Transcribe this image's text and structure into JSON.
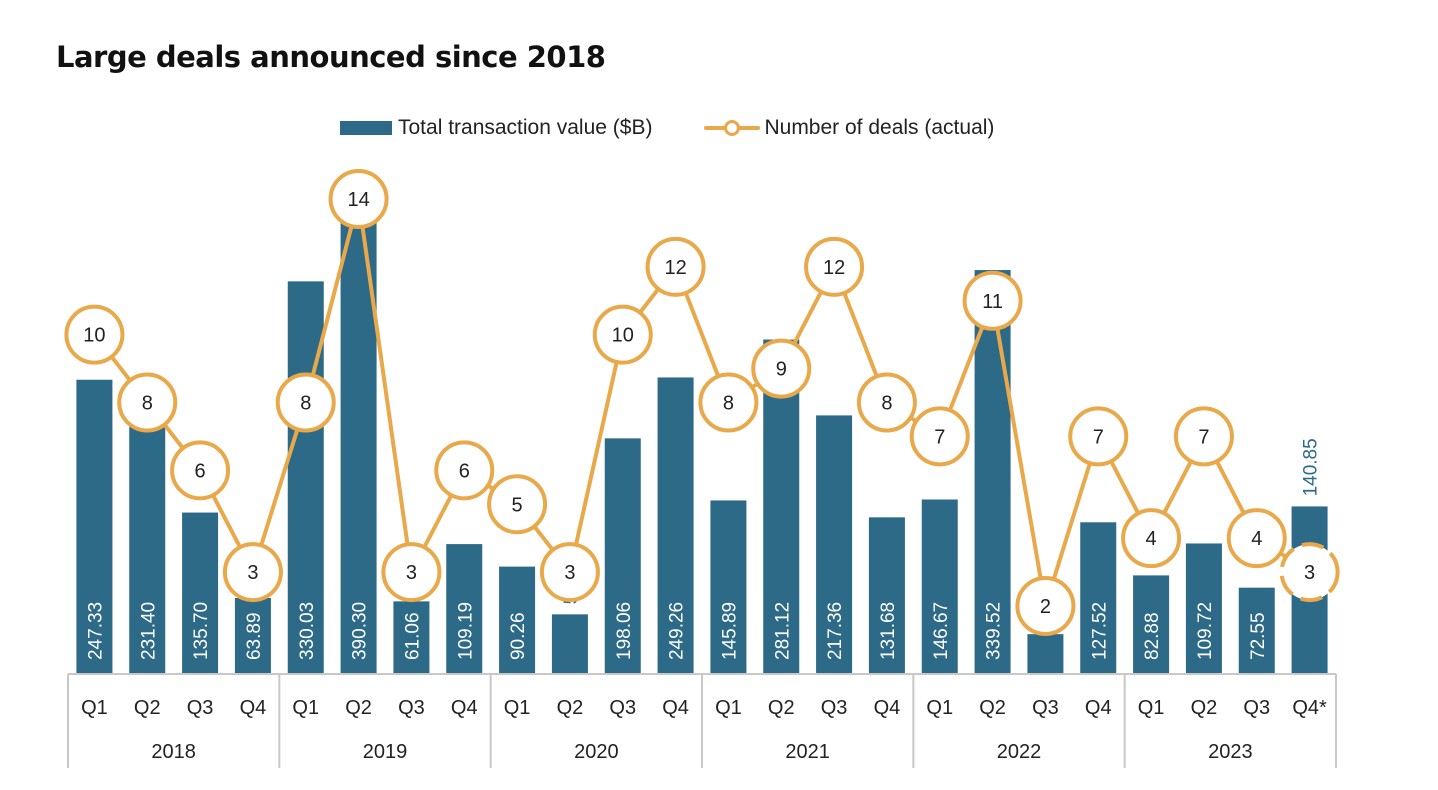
{
  "chart_data": {
    "type": "bar",
    "title": "Large deals announced since 2018",
    "xlabel": "",
    "ylabel": "",
    "legend": {
      "position": "top-center",
      "entries": [
        {
          "name": "Total transaction value ($B)",
          "kind": "bar",
          "color": "#2c6a87"
        },
        {
          "name": "Number of deals (actual)",
          "kind": "line-marker",
          "color": "#e9a84a"
        }
      ]
    },
    "years": [
      "2018",
      "2019",
      "2020",
      "2021",
      "2022",
      "2023"
    ],
    "categories": [
      "Q1",
      "Q2",
      "Q3",
      "Q4",
      "Q1",
      "Q2",
      "Q3",
      "Q4",
      "Q1",
      "Q2",
      "Q3",
      "Q4",
      "Q1",
      "Q2",
      "Q3",
      "Q4",
      "Q1",
      "Q2",
      "Q3",
      "Q4",
      "Q1",
      "Q2",
      "Q3",
      "Q4*"
    ],
    "series": [
      {
        "name": "Total transaction value ($B)",
        "type": "bar",
        "color": "#2c6a87",
        "values": [
          247.33,
          231.4,
          135.7,
          63.89,
          330.03,
          390.3,
          61.06,
          109.19,
          90.26,
          50.15,
          198.06,
          249.26,
          145.89,
          281.12,
          217.36,
          131.68,
          146.67,
          339.52,
          33.5,
          127.52,
          82.88,
          109.72,
          72.55,
          140.85
        ],
        "labels": [
          "247.33",
          "231.40",
          "135.70",
          "63.89",
          "330.03",
          "390.30",
          "61.06",
          "109.19",
          "90.26",
          "50.15",
          "198.06",
          "249.26",
          "145.89",
          "281.12",
          "217.36",
          "131.68",
          "146.67",
          "339.52",
          "33.50",
          "127.52",
          "82.88",
          "109.72",
          "72.55",
          "140.85"
        ],
        "label_outside": [
          false,
          false,
          false,
          false,
          false,
          false,
          false,
          false,
          false,
          true,
          false,
          false,
          false,
          false,
          false,
          false,
          false,
          false,
          true,
          false,
          false,
          false,
          false,
          true
        ]
      },
      {
        "name": "Number of deals (actual)",
        "type": "line",
        "color": "#e9a84a",
        "values": [
          10,
          8,
          6,
          3,
          8,
          14,
          3,
          6,
          5,
          3,
          10,
          12,
          8,
          9,
          12,
          8,
          7,
          11,
          2,
          7,
          4,
          7,
          4,
          3
        ],
        "estimated": [
          false,
          false,
          false,
          false,
          false,
          false,
          false,
          false,
          false,
          false,
          false,
          false,
          false,
          false,
          false,
          false,
          false,
          false,
          false,
          false,
          false,
          false,
          false,
          true
        ]
      }
    ],
    "bar_ylim": [
      0,
      400
    ],
    "line_ylim": [
      0,
      15
    ],
    "grid": false,
    "colors": {
      "bar": "#2c6a87",
      "line": "#e9a84a",
      "bar_label_inside": "#ffffff",
      "bar_label_outside": "#2c6a87",
      "axis": "#c8c8c8",
      "text": "#222222"
    }
  }
}
